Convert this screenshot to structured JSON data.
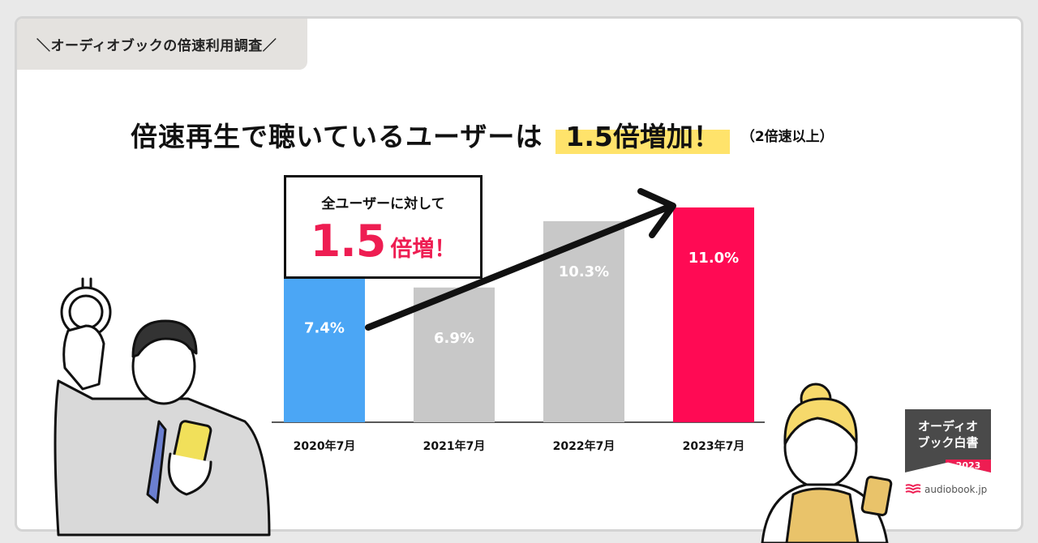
{
  "tag": {
    "label": "＼オーディオブックの倍速利用調査／"
  },
  "headline": {
    "main": "倍速再生で聴いているユーザーは",
    "highlight": "1.5倍増加！",
    "note": "（2倍速以上）"
  },
  "callout": {
    "line1": "全ユーザーに対して",
    "big": "1.5",
    "suffix": "倍増！"
  },
  "colors": {
    "first_bar": "#4ba6f5",
    "mid_bars": "#c8c8c8",
    "last_bar": "#ff0a54",
    "accent_red": "#ee1d52",
    "highlight": "#ffe36b"
  },
  "chart_data": {
    "type": "bar",
    "categories": [
      "2020年7月",
      "2021年7月",
      "2022年7月",
      "2023年7月"
    ],
    "values": [
      7.4,
      6.9,
      10.3,
      11.0
    ],
    "value_labels": [
      "7.4%",
      "6.9%",
      "10.3%",
      "11.0%"
    ],
    "unit": "%",
    "title": "倍速再生で聴いているユーザーは 1.5倍増加！",
    "xlabel": "",
    "ylabel": "",
    "ylim": [
      0,
      11.0
    ],
    "annotation": "全ユーザーに対して 1.5倍増！"
  },
  "badge": {
    "line1": "オーディオ",
    "line2": "ブック白書",
    "year": "2023"
  },
  "brand": {
    "name": "audiobook.jp"
  }
}
